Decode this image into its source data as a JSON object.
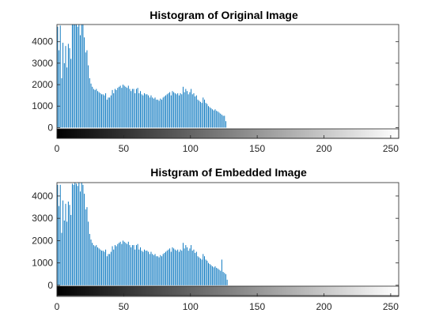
{
  "chart_data": [
    {
      "type": "bar",
      "title": "Histogram of Original Image",
      "x_ticks": [
        "0",
        "50",
        "100",
        "150",
        "200",
        "250"
      ],
      "y_ticks": [
        "0",
        "1000",
        "2000",
        "3000",
        "4000"
      ],
      "xlim": [
        0,
        256
      ],
      "ylim": [
        -500,
        4800
      ],
      "bar_color": "#0072BD",
      "gray_colorbar": true,
      "x": [
        0,
        1,
        2,
        3,
        4,
        5,
        6,
        7,
        8,
        9,
        10,
        11,
        12,
        13,
        14,
        15,
        16,
        17,
        18,
        19,
        20,
        21,
        22,
        23,
        24,
        25,
        26,
        27,
        28,
        29,
        30,
        31,
        32,
        33,
        34,
        35,
        36,
        37,
        38,
        39,
        40,
        41,
        42,
        43,
        44,
        45,
        46,
        47,
        48,
        49,
        50,
        51,
        52,
        53,
        54,
        55,
        56,
        57,
        58,
        59,
        60,
        61,
        62,
        63,
        64,
        65,
        66,
        67,
        68,
        69,
        70,
        71,
        72,
        73,
        74,
        75,
        76,
        77,
        78,
        79,
        80,
        81,
        82,
        83,
        84,
        85,
        86,
        87,
        88,
        89,
        90,
        91,
        92,
        93,
        94,
        95,
        96,
        97,
        98,
        99,
        100,
        101,
        102,
        103,
        104,
        105,
        106,
        107,
        108,
        109,
        110,
        111,
        112,
        113,
        114,
        115,
        116,
        117,
        118,
        119,
        120,
        121,
        122,
        123,
        124,
        125,
        126,
        127
      ],
      "values": [
        4700,
        3600,
        4750,
        2300,
        3950,
        3000,
        3800,
        2800,
        3900,
        3700,
        3200,
        4850,
        4800,
        4900,
        4850,
        4700,
        4850,
        4300,
        4900,
        4800,
        4200,
        3500,
        3600,
        2900,
        2300,
        2050,
        1900,
        1800,
        1750,
        1800,
        1700,
        1650,
        1600,
        1550,
        1550,
        1500,
        1600,
        1300,
        1400,
        1400,
        1500,
        1750,
        1600,
        1800,
        1750,
        1850,
        1900,
        1950,
        1850,
        2000,
        1950,
        1900,
        1850,
        1950,
        1800,
        1700,
        1800,
        1800,
        1600,
        1800,
        1850,
        1600,
        1700,
        1550,
        1500,
        1600,
        1550,
        1550,
        1500,
        1400,
        1500,
        1400,
        1350,
        1400,
        1300,
        1300,
        1250,
        1350,
        1300,
        1400,
        1450,
        1500,
        1550,
        1600,
        1650,
        1500,
        1700,
        1650,
        1600,
        1550,
        1600,
        1500,
        1600,
        1550,
        1900,
        1650,
        1800,
        1700,
        1550,
        1650,
        1800,
        1550,
        1600,
        1450,
        1500,
        1300,
        1250,
        1200,
        1150,
        1400,
        1300,
        1150,
        1100,
        1000,
        950,
        900,
        850,
        800,
        850,
        780,
        750,
        700,
        650,
        600,
        550,
        550,
        300,
        0
      ]
    },
    {
      "type": "bar",
      "title": "Histgram of Embedded Image",
      "x_ticks": [
        "0",
        "50",
        "100",
        "150",
        "200",
        "250"
      ],
      "y_ticks": [
        "0",
        "1000",
        "2000",
        "3000",
        "4000"
      ],
      "xlim": [
        0,
        256
      ],
      "ylim": [
        -500,
        4600
      ],
      "bar_color": "#0072BD",
      "gray_colorbar": true,
      "x": [
        0,
        1,
        2,
        3,
        4,
        5,
        6,
        7,
        8,
        9,
        10,
        11,
        12,
        13,
        14,
        15,
        16,
        17,
        18,
        19,
        20,
        21,
        22,
        23,
        24,
        25,
        26,
        27,
        28,
        29,
        30,
        31,
        32,
        33,
        34,
        35,
        36,
        37,
        38,
        39,
        40,
        41,
        42,
        43,
        44,
        45,
        46,
        47,
        48,
        49,
        50,
        51,
        52,
        53,
        54,
        55,
        56,
        57,
        58,
        59,
        60,
        61,
        62,
        63,
        64,
        65,
        66,
        67,
        68,
        69,
        70,
        71,
        72,
        73,
        74,
        75,
        76,
        77,
        78,
        79,
        80,
        81,
        82,
        83,
        84,
        85,
        86,
        87,
        88,
        89,
        90,
        91,
        92,
        93,
        94,
        95,
        96,
        97,
        98,
        99,
        100,
        101,
        102,
        103,
        104,
        105,
        106,
        107,
        108,
        109,
        110,
        111,
        112,
        113,
        114,
        115,
        116,
        117,
        118,
        119,
        120,
        121,
        122,
        123,
        124,
        125,
        126,
        127,
        128
      ],
      "values": [
        4500,
        3550,
        4500,
        2350,
        3800,
        2900,
        3650,
        2850,
        3750,
        3600,
        3150,
        4550,
        4500,
        4600,
        4550,
        4450,
        4600,
        4200,
        4600,
        4500,
        4100,
        3400,
        3500,
        2850,
        2300,
        2050,
        1900,
        1800,
        1750,
        1800,
        1700,
        1650,
        1600,
        1550,
        1550,
        1500,
        1600,
        1300,
        1400,
        1400,
        1500,
        1750,
        1600,
        1800,
        1750,
        1850,
        1900,
        1950,
        1850,
        2000,
        1950,
        1900,
        1850,
        1950,
        1800,
        1700,
        1800,
        1800,
        1600,
        1800,
        1850,
        1600,
        1700,
        1550,
        1500,
        1600,
        1550,
        1550,
        1500,
        1400,
        1500,
        1400,
        1350,
        1400,
        1300,
        1300,
        1250,
        1350,
        1300,
        1400,
        1450,
        1500,
        1550,
        1600,
        1650,
        1500,
        1700,
        1650,
        1600,
        1550,
        1600,
        1500,
        1600,
        1550,
        1900,
        1650,
        1800,
        1700,
        1550,
        1650,
        1800,
        1550,
        1600,
        1450,
        1500,
        1300,
        1250,
        1200,
        1150,
        1400,
        1300,
        1150,
        1100,
        1000,
        950,
        900,
        850,
        800,
        850,
        780,
        750,
        700,
        650,
        1150,
        600,
        550,
        500,
        250,
        0
      ]
    }
  ]
}
